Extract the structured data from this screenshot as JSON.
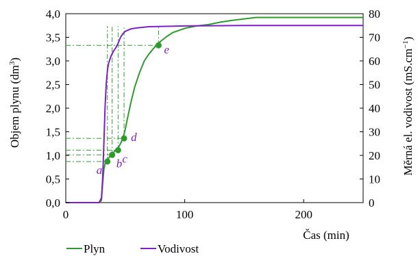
{
  "chart_data": {
    "type": "line",
    "xlabel": "Čas (min)",
    "ylabel_left": "Objem plynu (dm",
    "ylabel_left_sup": "3",
    "ylabel_left_end": ")",
    "ylabel_right": "Měrná el. vodivost (mS.cm",
    "ylabel_right_sup": "−1",
    "ylabel_right_end": ")",
    "xlim": [
      0,
      250
    ],
    "ylim_left": [
      0,
      4.0
    ],
    "ylim_right": [
      0,
      80
    ],
    "x_ticks": [
      0,
      100,
      200
    ],
    "x_tick_labels": [
      "0",
      "100",
      "200"
    ],
    "y_left_ticks": [
      0,
      0.5,
      1.0,
      1.5,
      2.0,
      2.5,
      3.0,
      3.5,
      4.0
    ],
    "y_left_tick_labels": [
      "0,0",
      "0,5",
      "1,0",
      "1,5",
      "2,0",
      "2,5",
      "3,0",
      "3,5",
      "4,0"
    ],
    "y_right_ticks": [
      0,
      10,
      20,
      30,
      40,
      50,
      60,
      70,
      80
    ],
    "y_right_tick_labels": [
      "0",
      "10",
      "20",
      "30",
      "40",
      "50",
      "60",
      "70",
      "80"
    ],
    "grid": false,
    "legend_placement": "bottom-left",
    "series": [
      {
        "name": "Plyn",
        "axis": "left",
        "color": "#2e9a2e",
        "x": [
          0,
          28,
          30,
          31,
          32,
          33,
          34,
          36,
          38,
          40,
          42,
          44,
          46,
          48,
          50,
          52,
          55,
          58,
          62,
          66,
          70,
          75,
          80,
          85,
          90,
          100,
          110,
          120,
          130,
          140,
          150,
          160,
          200,
          250
        ],
        "y": [
          0,
          0,
          0.05,
          0.4,
          0.7,
          0.82,
          0.87,
          0.94,
          1.01,
          1.06,
          1.11,
          1.16,
          1.25,
          1.36,
          1.55,
          1.8,
          2.15,
          2.45,
          2.75,
          3.0,
          3.15,
          3.3,
          3.42,
          3.52,
          3.6,
          3.69,
          3.74,
          3.77,
          3.82,
          3.86,
          3.89,
          3.92,
          3.92,
          3.92
        ]
      },
      {
        "name": "Vodivost",
        "axis": "right",
        "color": "#7b1fc8",
        "x": [
          0,
          28,
          30,
          31,
          32,
          33,
          34,
          35,
          36,
          38,
          40,
          42,
          44,
          46,
          48,
          50,
          52,
          55,
          60,
          70,
          80,
          100,
          150,
          250
        ],
        "y": [
          0,
          0,
          2,
          10,
          25,
          40,
          50,
          56,
          59,
          62,
          64,
          65.5,
          67.5,
          70,
          71.5,
          72.5,
          73,
          73.6,
          74,
          74.5,
          74.6,
          74.8,
          75,
          75
        ]
      }
    ],
    "marked_points": [
      {
        "label": "a",
        "x": 35,
        "y": 0.87
      },
      {
        "label": "b",
        "x": 39,
        "y": 1.01
      },
      {
        "label": "c",
        "x": 44,
        "y": 1.11
      },
      {
        "label": "d",
        "x": 49,
        "y": 1.36
      },
      {
        "label": "e",
        "x": 78,
        "y": 3.33
      }
    ]
  }
}
